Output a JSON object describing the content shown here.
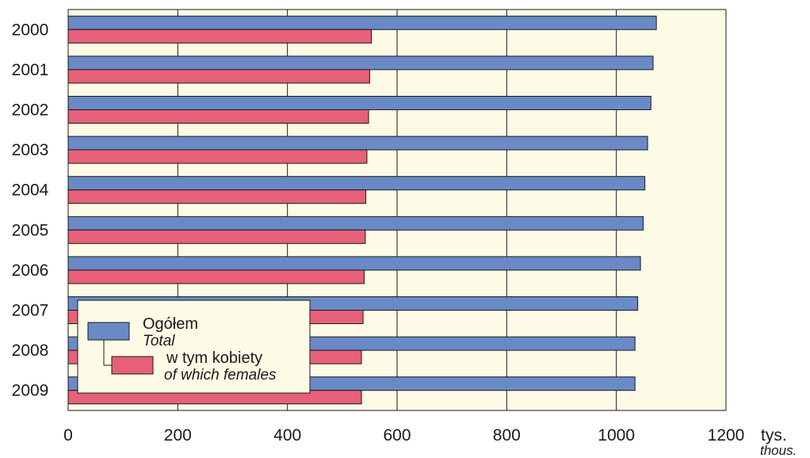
{
  "chart_data": {
    "type": "bar",
    "orientation": "horizontal",
    "categories": [
      "2000",
      "2001",
      "2002",
      "2003",
      "2004",
      "2005",
      "2006",
      "2007",
      "2008",
      "2009"
    ],
    "series": [
      {
        "name": "Ogółem",
        "name_en": "Total",
        "color": "#6a8ac6",
        "values": [
          1073,
          1067,
          1063,
          1057,
          1052,
          1049,
          1044,
          1039,
          1034,
          1034
        ]
      },
      {
        "name": "w tym kobiety",
        "name_en": "of which females",
        "color": "#e8607a",
        "values": [
          553,
          550,
          548,
          545,
          543,
          542,
          540,
          538,
          535,
          535
        ]
      }
    ],
    "xlim": [
      0,
      1200
    ],
    "x_ticks": [
      "0",
      "200",
      "400",
      "600",
      "800",
      "1000",
      "1200"
    ],
    "unit": "tys.",
    "unit_en": "thous.",
    "grid": true,
    "legend_position": "bottom-left",
    "plot_background": "#fdfbe6"
  }
}
